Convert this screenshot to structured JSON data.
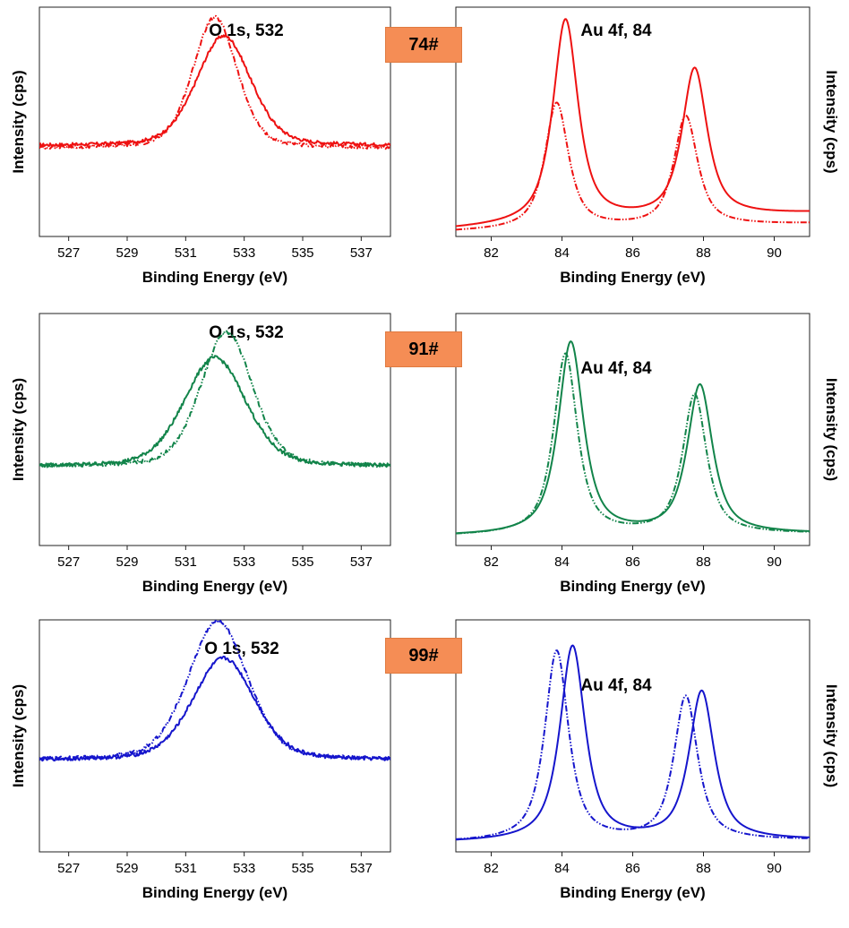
{
  "samples": [
    {
      "label": "74#",
      "color": "#ee1111"
    },
    {
      "label": "91#",
      "color": "#12844a"
    },
    {
      "label": "99#",
      "color": "#1515cc"
    }
  ],
  "chart_data": [
    {
      "type": "line",
      "panel": "74# O 1s",
      "title": "O 1s, 532",
      "xlabel": "Binding Energy (eV)",
      "ylabel": "Intensity (cps)",
      "xlim": [
        526,
        538
      ],
      "xticks": [
        527,
        529,
        531,
        533,
        535,
        537
      ],
      "ylim": [
        0,
        1
      ],
      "yticks": "none",
      "series": [
        {
          "style": "solid",
          "baseline": 0.395,
          "noise": 0.007,
          "peaks": [
            {
              "center": 532.3,
              "height": 0.48,
              "fwhm": 2.2,
              "eta": 0.3
            }
          ]
        },
        {
          "style": "dash-dot-dot",
          "baseline": 0.385,
          "noise": 0.007,
          "peaks": [
            {
              "center": 532.0,
              "height": 0.57,
              "fwhm": 1.8,
              "eta": 0.3
            }
          ]
        }
      ]
    },
    {
      "type": "line",
      "panel": "74# Au 4f",
      "title": "Au 4f, 84",
      "xlabel": "Binding Energy (eV)",
      "ylabel": "Intensity (cps)",
      "xlim": [
        81,
        91
      ],
      "xticks": [
        82,
        84,
        86,
        88,
        90
      ],
      "ylim": [
        0,
        1
      ],
      "yticks": "none",
      "series": [
        {
          "style": "solid",
          "baseline": 0.03,
          "baseline_end": 0.1,
          "noise": 0.0,
          "peaks": [
            {
              "center": 84.1,
              "height": 0.89,
              "fwhm": 0.85,
              "eta": 0.8
            },
            {
              "center": 87.75,
              "height": 0.65,
              "fwhm": 0.85,
              "eta": 0.8
            }
          ]
        },
        {
          "style": "dash-dot-dot",
          "baseline": 0.02,
          "baseline_end": 0.055,
          "noise": 0.0,
          "peaks": [
            {
              "center": 83.85,
              "height": 0.55,
              "fwhm": 0.8,
              "eta": 0.8
            },
            {
              "center": 87.5,
              "height": 0.48,
              "fwhm": 0.8,
              "eta": 0.8
            }
          ]
        }
      ]
    },
    {
      "type": "line",
      "panel": "91# O 1s",
      "title": "O 1s, 532",
      "xlabel": "Binding Energy (eV)",
      "ylabel": "Intensity (cps)",
      "xlim": [
        526,
        538
      ],
      "xticks": [
        527,
        529,
        531,
        533,
        535,
        537
      ],
      "ylim": [
        0,
        1
      ],
      "yticks": "none",
      "series": [
        {
          "style": "solid",
          "baseline": 0.34,
          "noise": 0.008,
          "peaks": [
            {
              "center": 532.0,
              "height": 0.47,
              "fwhm": 2.5,
              "eta": 0.3
            }
          ]
        },
        {
          "style": "dash-dot-dot",
          "baseline": 0.34,
          "noise": 0.008,
          "peaks": [
            {
              "center": 532.4,
              "height": 0.58,
              "fwhm": 2.1,
              "eta": 0.3
            }
          ]
        }
      ]
    },
    {
      "type": "line",
      "panel": "91# Au 4f",
      "title": "Au 4f, 84",
      "xlabel": "Binding Energy (eV)",
      "ylabel": "Intensity (cps)",
      "xlim": [
        81,
        91
      ],
      "xticks": [
        82,
        84,
        86,
        88,
        90
      ],
      "ylim": [
        0,
        1
      ],
      "yticks": "none",
      "series": [
        {
          "style": "solid",
          "baseline": 0.04,
          "baseline_end": 0.05,
          "noise": 0.0,
          "peaks": [
            {
              "center": 84.25,
              "height": 0.83,
              "fwhm": 0.85,
              "eta": 0.8
            },
            {
              "center": 87.9,
              "height": 0.64,
              "fwhm": 0.85,
              "eta": 0.8
            }
          ]
        },
        {
          "style": "dash-dot-dot",
          "baseline": 0.04,
          "baseline_end": 0.05,
          "noise": 0.0,
          "peaks": [
            {
              "center": 84.1,
              "height": 0.78,
              "fwhm": 0.8,
              "eta": 0.8
            },
            {
              "center": 87.75,
              "height": 0.6,
              "fwhm": 0.8,
              "eta": 0.8
            }
          ]
        }
      ]
    },
    {
      "type": "line",
      "panel": "99# O 1s",
      "title": "O 1s, 532",
      "xlabel": "Binding Energy (eV)",
      "ylabel": "Intensity (cps)",
      "xlim": [
        526,
        538
      ],
      "xticks": [
        527,
        529,
        531,
        533,
        535,
        537
      ],
      "ylim": [
        0,
        1
      ],
      "yticks": "none",
      "series": [
        {
          "style": "solid",
          "baseline": 0.395,
          "noise": 0.008,
          "peaks": [
            {
              "center": 532.3,
              "height": 0.44,
              "fwhm": 2.5,
              "eta": 0.3
            }
          ]
        },
        {
          "style": "dash-dot-dot",
          "baseline": 0.395,
          "noise": 0.008,
          "peaks": [
            {
              "center": 532.1,
              "height": 0.6,
              "fwhm": 2.4,
              "eta": 0.3
            }
          ]
        }
      ]
    },
    {
      "type": "line",
      "panel": "99# Au 4f",
      "title": "Au 4f, 84",
      "xlabel": "Binding Energy (eV)",
      "ylabel": "Intensity (cps)",
      "xlim": [
        81,
        91
      ],
      "xticks": [
        82,
        84,
        86,
        88,
        90
      ],
      "ylim": [
        0,
        1
      ],
      "yticks": "none",
      "series": [
        {
          "style": "solid",
          "baseline": 0.04,
          "baseline_end": 0.05,
          "noise": 0.0,
          "peaks": [
            {
              "center": 84.3,
              "height": 0.84,
              "fwhm": 0.85,
              "eta": 0.8
            },
            {
              "center": 87.95,
              "height": 0.64,
              "fwhm": 0.85,
              "eta": 0.8
            }
          ]
        },
        {
          "style": "dash-dot-dot",
          "baseline": 0.04,
          "baseline_end": 0.05,
          "noise": 0.0,
          "peaks": [
            {
              "center": 83.85,
              "height": 0.82,
              "fwhm": 0.8,
              "eta": 0.8
            },
            {
              "center": 87.5,
              "height": 0.62,
              "fwhm": 0.8,
              "eta": 0.8
            }
          ]
        }
      ]
    }
  ]
}
